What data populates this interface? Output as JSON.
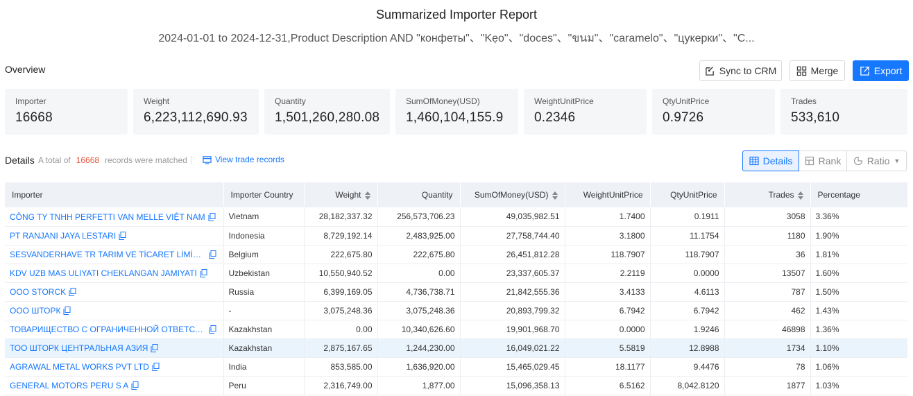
{
  "header": {
    "title": "Summarized Importer Report",
    "subtitle": "2024-01-01 to 2024-12-31,Product Description AND \"конфеты\"、\"Kẹo\"、\"doces\"、\"ขนม\"、\"caramelo\"、\"цукерки\"、\"C..."
  },
  "overview": {
    "label": "Overview",
    "buttons": {
      "sync": "Sync to CRM",
      "merge": "Merge",
      "export": "Export"
    },
    "cards": [
      {
        "label": "Importer",
        "value": "16668"
      },
      {
        "label": "Weight",
        "value": "6,223,112,690.93"
      },
      {
        "label": "Quantity",
        "value": "1,501,260,280.08"
      },
      {
        "label": "SumOfMoney(USD)",
        "value": "1,460,104,155.9"
      },
      {
        "label": "WeightUnitPrice",
        "value": "0.2346"
      },
      {
        "label": "QtyUnitPrice",
        "value": "0.9726"
      },
      {
        "label": "Trades",
        "value": "533,610"
      }
    ]
  },
  "details": {
    "label": "Details",
    "total_prefix": "A total of",
    "total_count": "16668",
    "total_suffix": "records were matched",
    "view_link": "View trade records",
    "tabs": {
      "details": "Details",
      "rank": "Rank",
      "ratio": "Ratio"
    }
  },
  "table": {
    "columns": [
      "Importer",
      "Importer Country",
      "Weight",
      "Quantity",
      "SumOfMoney(USD)",
      "WeightUnitPrice",
      "QtyUnitPrice",
      "Trades",
      "Percentage"
    ],
    "rows": [
      [
        "CÔNG TY TNHH PERFETTI VAN MELLE VIỆT NAM",
        "Vietnam",
        "28,182,337.32",
        "256,573,706.23",
        "49,035,982.51",
        "1.7400",
        "0.1911",
        "3058",
        "3.36%"
      ],
      [
        "PT RANJANI JAYA LESTARI",
        "Indonesia",
        "8,729,192.14",
        "2,483,925.00",
        "27,758,744.40",
        "3.1800",
        "11.1754",
        "1180",
        "1.90%"
      ],
      [
        "SESVANDERHAVE TR TARIM VE TİCARET LİMİTED ŞİRKETİ",
        "Belgium",
        "222,675.80",
        "222,675.80",
        "26,451,812.28",
        "118.7907",
        "118.7907",
        "36",
        "1.81%"
      ],
      [
        "KDV UZB MAS ULIYATI CHEKLANGAN JAMIYATI",
        "Uzbekistan",
        "10,550,940.52",
        "0.00",
        "23,337,605.37",
        "2.2119",
        "0.0000",
        "13507",
        "1.60%"
      ],
      [
        "OOO STORCK",
        "Russia",
        "6,399,169.05",
        "4,736,738.71",
        "21,842,555.36",
        "3.4133",
        "4.6113",
        "787",
        "1.50%"
      ],
      [
        "ООО ШТОРК",
        "-",
        "3,075,248.36",
        "3,075,248.36",
        "20,893,799.32",
        "6.7942",
        "6.7942",
        "462",
        "1.43%"
      ],
      [
        "ТОВАРИЩЕСТВО С ОГРАНИЧЕННОЙ ОТВЕТСТВЕННОСТЬЮ",
        "Kazakhstan",
        "0.00",
        "10,340,626.60",
        "19,901,968.70",
        "0.0000",
        "1.9246",
        "46898",
        "1.36%"
      ],
      [
        "ТОО ШТОРК ЦЕНТРАЛЬНАЯ АЗИЯ",
        "Kazakhstan",
        "2,875,167.65",
        "1,244,230.00",
        "16,049,021.22",
        "5.5819",
        "12.8988",
        "1734",
        "1.10%"
      ],
      [
        "AGRAWAL METAL WORKS PVT LTD",
        "India",
        "853,585.00",
        "1,636,920.00",
        "15,465,029.45",
        "18.1177",
        "9.4476",
        "78",
        "1.06%"
      ],
      [
        "GENERAL MOTORS PERU S A",
        "Peru",
        "2,316,749.00",
        "1,877.00",
        "15,096,358.13",
        "6.5162",
        "8,042.8120",
        "1877",
        "1.03%"
      ]
    ]
  }
}
